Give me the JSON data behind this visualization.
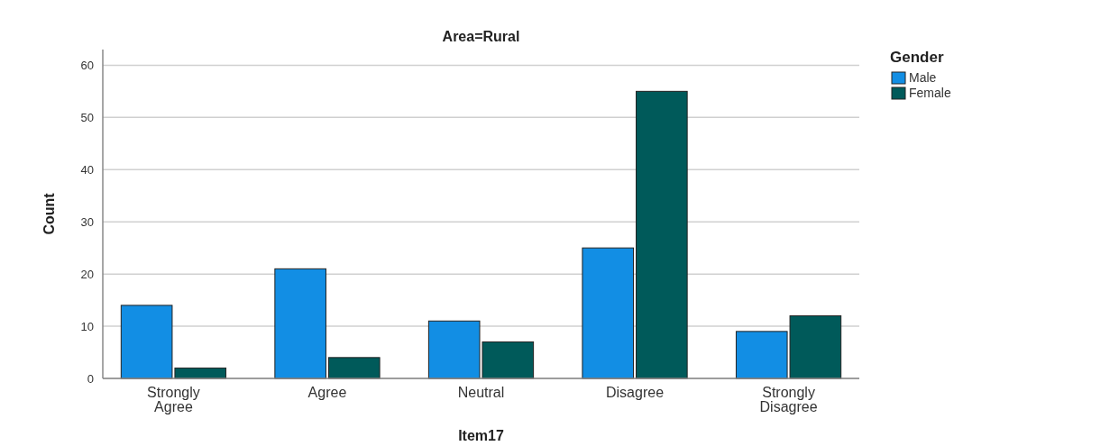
{
  "chart_data": {
    "type": "bar",
    "title": "Area=Rural",
    "xlabel": "Item17",
    "ylabel": "Count",
    "legend_title": "Gender",
    "categories": [
      "Strongly Agree",
      "Agree",
      "Neutral",
      "Disagree",
      "Strongly Disagree"
    ],
    "series": [
      {
        "name": "Male",
        "color": "#128ee4",
        "values": [
          14,
          21,
          11,
          25,
          9
        ]
      },
      {
        "name": "Female",
        "color": "#005a5a",
        "values": [
          2,
          4,
          7,
          55,
          12
        ]
      }
    ],
    "ylim": [
      0,
      63
    ],
    "yticks": [
      0,
      10,
      20,
      30,
      40,
      50,
      60
    ],
    "grid": "y",
    "legend": "top right"
  }
}
